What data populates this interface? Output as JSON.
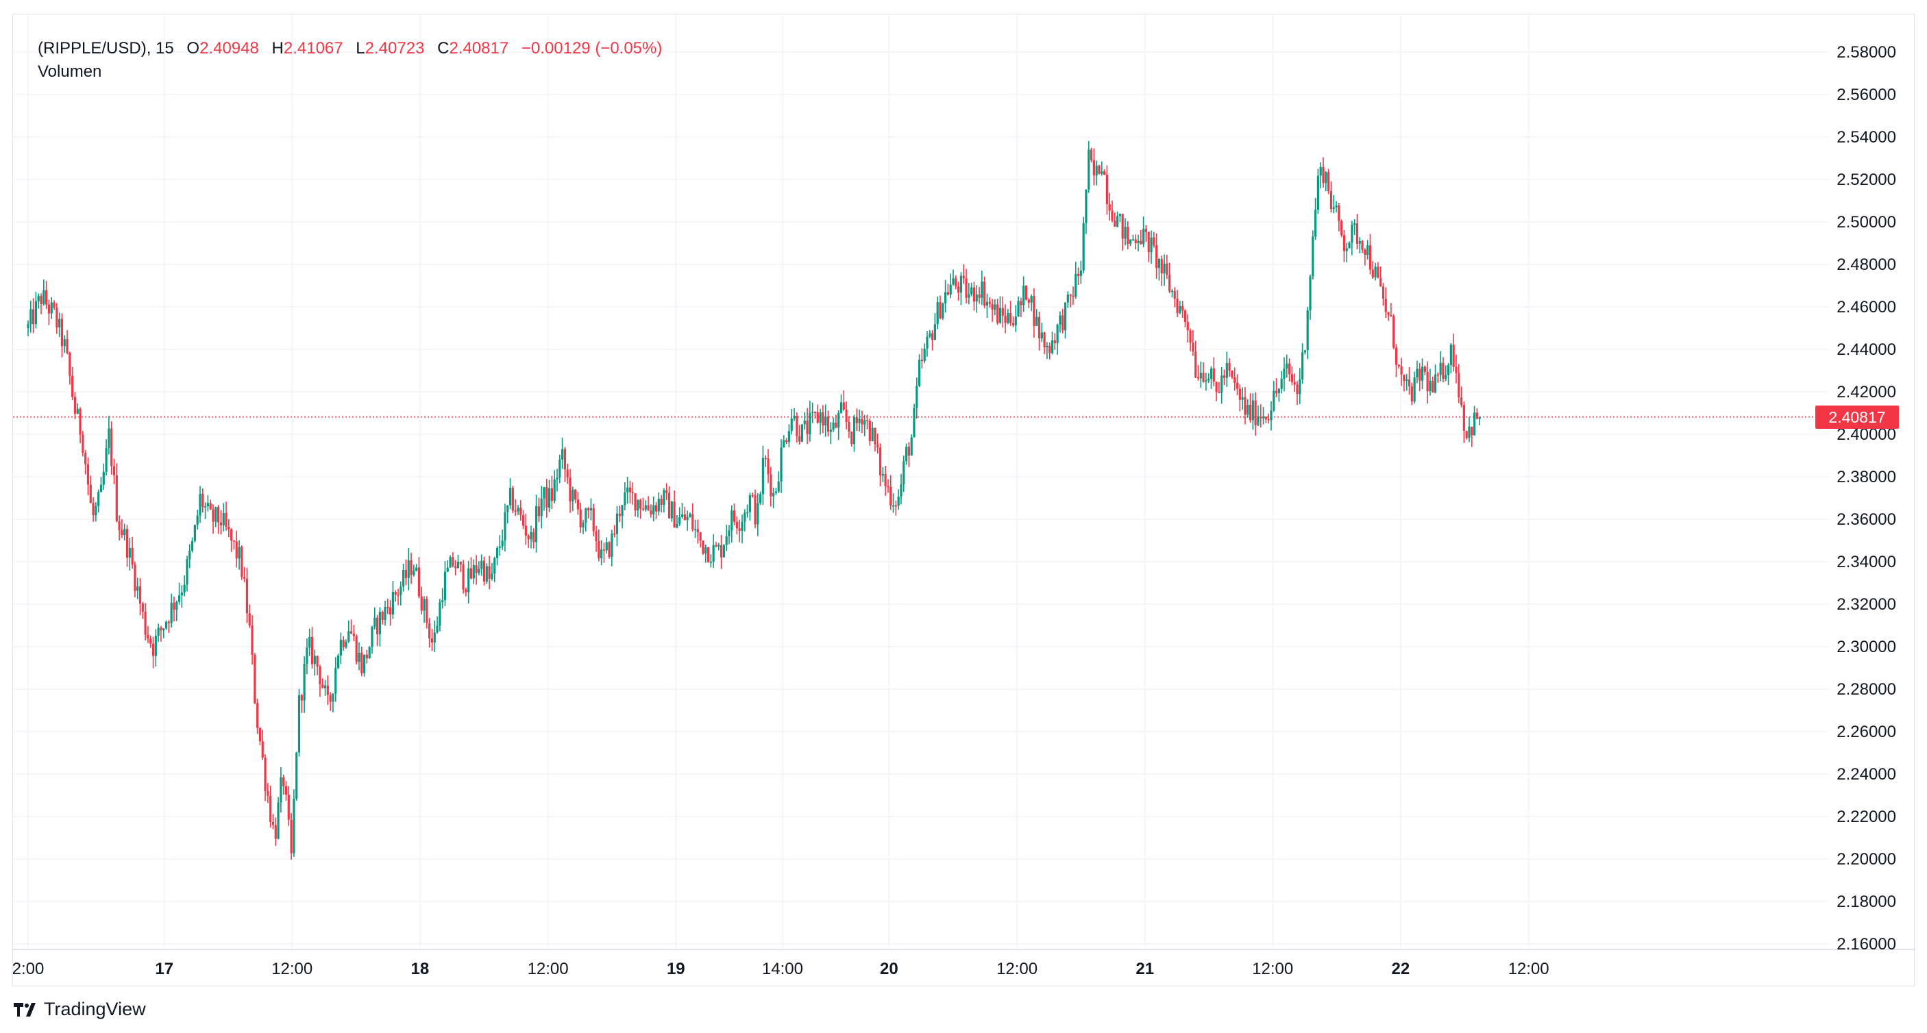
{
  "legend": {
    "symbol": "(RIPPLE/USD), 15",
    "open_label": "O",
    "open": "2.40948",
    "high_label": "H",
    "high": "2.41067",
    "low_label": "L",
    "low": "2.40723",
    "close_label": "C",
    "close": "2.40817",
    "change": "−0.00129 (−0.05%)"
  },
  "volume_label": "Volumen",
  "current_price": "2.40817",
  "logo_text": "TradingView",
  "colors": {
    "up": "#089981",
    "down": "#f23645",
    "grid": "#f0f3fa",
    "text": "#131722",
    "price_line": "#f23645"
  },
  "chart_data": {
    "type": "candlestick",
    "interval": "15",
    "ylim": [
      2.15,
      2.59
    ],
    "y_ticks": [
      "2.58000",
      "2.56000",
      "2.54000",
      "2.52000",
      "2.50000",
      "2.48000",
      "2.46000",
      "2.44000",
      "2.42000",
      "2.40000",
      "2.38000",
      "2.36000",
      "2.34000",
      "2.32000",
      "2.30000",
      "2.28000",
      "2.26000",
      "2.24000",
      "2.22000",
      "2.20000",
      "2.18000",
      "2.16000"
    ],
    "x_ticks": [
      {
        "label": "2:00",
        "pos": 0.0,
        "bold": false
      },
      {
        "label": "17",
        "pos": 0.0807,
        "bold": true
      },
      {
        "label": "12:00",
        "pos": 0.1564,
        "bold": false
      },
      {
        "label": "18",
        "pos": 0.2322,
        "bold": true
      },
      {
        "label": "12:00",
        "pos": 0.308,
        "bold": false
      },
      {
        "label": "19",
        "pos": 0.3838,
        "bold": true
      },
      {
        "label": "14:00",
        "pos": 0.447,
        "bold": false
      },
      {
        "label": "20",
        "pos": 0.5101,
        "bold": true
      },
      {
        "label": "12:00",
        "pos": 0.5859,
        "bold": false
      },
      {
        "label": "21",
        "pos": 0.6617,
        "bold": true
      },
      {
        "label": "12:00",
        "pos": 0.7374,
        "bold": false
      },
      {
        "label": "22",
        "pos": 0.8132,
        "bold": true
      },
      {
        "label": "12:00",
        "pos": 0.889,
        "bold": false
      }
    ],
    "last_price": 2.40817,
    "close_path": [
      [
        0,
        2.45
      ],
      [
        0.008,
        2.465
      ],
      [
        0.016,
        2.455
      ],
      [
        0.022,
        2.44
      ],
      [
        0.028,
        2.41
      ],
      [
        0.032,
        2.4
      ],
      [
        0.038,
        2.36
      ],
      [
        0.043,
        2.37
      ],
      [
        0.048,
        2.4
      ],
      [
        0.053,
        2.36
      ],
      [
        0.058,
        2.35
      ],
      [
        0.064,
        2.33
      ],
      [
        0.069,
        2.31
      ],
      [
        0.074,
        2.3
      ],
      [
        0.08,
        2.31
      ],
      [
        0.086,
        2.32
      ],
      [
        0.092,
        2.33
      ],
      [
        0.098,
        2.35
      ],
      [
        0.102,
        2.37
      ],
      [
        0.108,
        2.36
      ],
      [
        0.114,
        2.36
      ],
      [
        0.12,
        2.35
      ],
      [
        0.126,
        2.34
      ],
      [
        0.131,
        2.31
      ],
      [
        0.135,
        2.27
      ],
      [
        0.14,
        2.24
      ],
      [
        0.146,
        2.21
      ],
      [
        0.151,
        2.24
      ],
      [
        0.156,
        2.2
      ],
      [
        0.16,
        2.27
      ],
      [
        0.166,
        2.3
      ],
      [
        0.172,
        2.29
      ],
      [
        0.178,
        2.27
      ],
      [
        0.184,
        2.3
      ],
      [
        0.19,
        2.31
      ],
      [
        0.198,
        2.29
      ],
      [
        0.206,
        2.31
      ],
      [
        0.214,
        2.32
      ],
      [
        0.222,
        2.33
      ],
      [
        0.228,
        2.34
      ],
      [
        0.234,
        2.32
      ],
      [
        0.24,
        2.3
      ],
      [
        0.246,
        2.33
      ],
      [
        0.252,
        2.34
      ],
      [
        0.26,
        2.33
      ],
      [
        0.268,
        2.34
      ],
      [
        0.274,
        2.33
      ],
      [
        0.28,
        2.35
      ],
      [
        0.286,
        2.37
      ],
      [
        0.292,
        2.36
      ],
      [
        0.298,
        2.35
      ],
      [
        0.304,
        2.37
      ],
      [
        0.31,
        2.37
      ],
      [
        0.316,
        2.39
      ],
      [
        0.322,
        2.37
      ],
      [
        0.328,
        2.36
      ],
      [
        0.334,
        2.36
      ],
      [
        0.34,
        2.34
      ],
      [
        0.346,
        2.35
      ],
      [
        0.352,
        2.37
      ],
      [
        0.36,
        2.37
      ],
      [
        0.368,
        2.365
      ],
      [
        0.376,
        2.37
      ],
      [
        0.384,
        2.36
      ],
      [
        0.392,
        2.36
      ],
      [
        0.398,
        2.35
      ],
      [
        0.404,
        2.345
      ],
      [
        0.41,
        2.345
      ],
      [
        0.416,
        2.36
      ],
      [
        0.422,
        2.36
      ],
      [
        0.428,
        2.37
      ],
      [
        0.432,
        2.36
      ],
      [
        0.436,
        2.39
      ],
      [
        0.442,
        2.37
      ],
      [
        0.446,
        2.39
      ],
      [
        0.452,
        2.41
      ],
      [
        0.458,
        2.4
      ],
      [
        0.464,
        2.405
      ],
      [
        0.47,
        2.41
      ],
      [
        0.476,
        2.4
      ],
      [
        0.482,
        2.41
      ],
      [
        0.488,
        2.4
      ],
      [
        0.494,
        2.41
      ],
      [
        0.5,
        2.4
      ],
      [
        0.506,
        2.38
      ],
      [
        0.512,
        2.37
      ],
      [
        0.516,
        2.37
      ],
      [
        0.52,
        2.39
      ],
      [
        0.524,
        2.4
      ],
      [
        0.528,
        2.43
      ],
      [
        0.532,
        2.44
      ],
      [
        0.536,
        2.45
      ],
      [
        0.54,
        2.46
      ],
      [
        0.546,
        2.47
      ],
      [
        0.552,
        2.47
      ],
      [
        0.558,
        2.465
      ],
      [
        0.564,
        2.47
      ],
      [
        0.57,
        2.46
      ],
      [
        0.576,
        2.455
      ],
      [
        0.582,
        2.455
      ],
      [
        0.588,
        2.46
      ],
      [
        0.592,
        2.47
      ],
      [
        0.598,
        2.45
      ],
      [
        0.604,
        2.44
      ],
      [
        0.61,
        2.45
      ],
      [
        0.616,
        2.46
      ],
      [
        0.62,
        2.47
      ],
      [
        0.624,
        2.48
      ],
      [
        0.628,
        2.53
      ],
      [
        0.632,
        2.52
      ],
      [
        0.636,
        2.53
      ],
      [
        0.64,
        2.51
      ],
      [
        0.646,
        2.5
      ],
      [
        0.652,
        2.49
      ],
      [
        0.658,
        2.495
      ],
      [
        0.664,
        2.49
      ],
      [
        0.67,
        2.48
      ],
      [
        0.676,
        2.47
      ],
      [
        0.682,
        2.46
      ],
      [
        0.688,
        2.45
      ],
      [
        0.692,
        2.43
      ],
      [
        0.698,
        2.43
      ],
      [
        0.704,
        2.42
      ],
      [
        0.71,
        2.43
      ],
      [
        0.716,
        2.42
      ],
      [
        0.722,
        2.41
      ],
      [
        0.728,
        2.41
      ],
      [
        0.734,
        2.41
      ],
      [
        0.74,
        2.42
      ],
      [
        0.746,
        2.43
      ],
      [
        0.752,
        2.42
      ],
      [
        0.756,
        2.44
      ],
      [
        0.76,
        2.48
      ],
      [
        0.764,
        2.52
      ],
      [
        0.768,
        2.525
      ],
      [
        0.772,
        2.51
      ],
      [
        0.776,
        2.5
      ],
      [
        0.78,
        2.49
      ],
      [
        0.786,
        2.495
      ],
      [
        0.792,
        2.49
      ],
      [
        0.796,
        2.48
      ],
      [
        0.8,
        2.47
      ],
      [
        0.804,
        2.46
      ],
      [
        0.808,
        2.45
      ],
      [
        0.812,
        2.43
      ],
      [
        0.816,
        2.42
      ],
      [
        0.82,
        2.42
      ],
      [
        0.826,
        2.43
      ],
      [
        0.832,
        2.42
      ],
      [
        0.838,
        2.43
      ],
      [
        0.844,
        2.44
      ],
      [
        0.848,
        2.42
      ],
      [
        0.852,
        2.4
      ],
      [
        0.856,
        2.405
      ],
      [
        0.86,
        2.41
      ]
    ]
  }
}
